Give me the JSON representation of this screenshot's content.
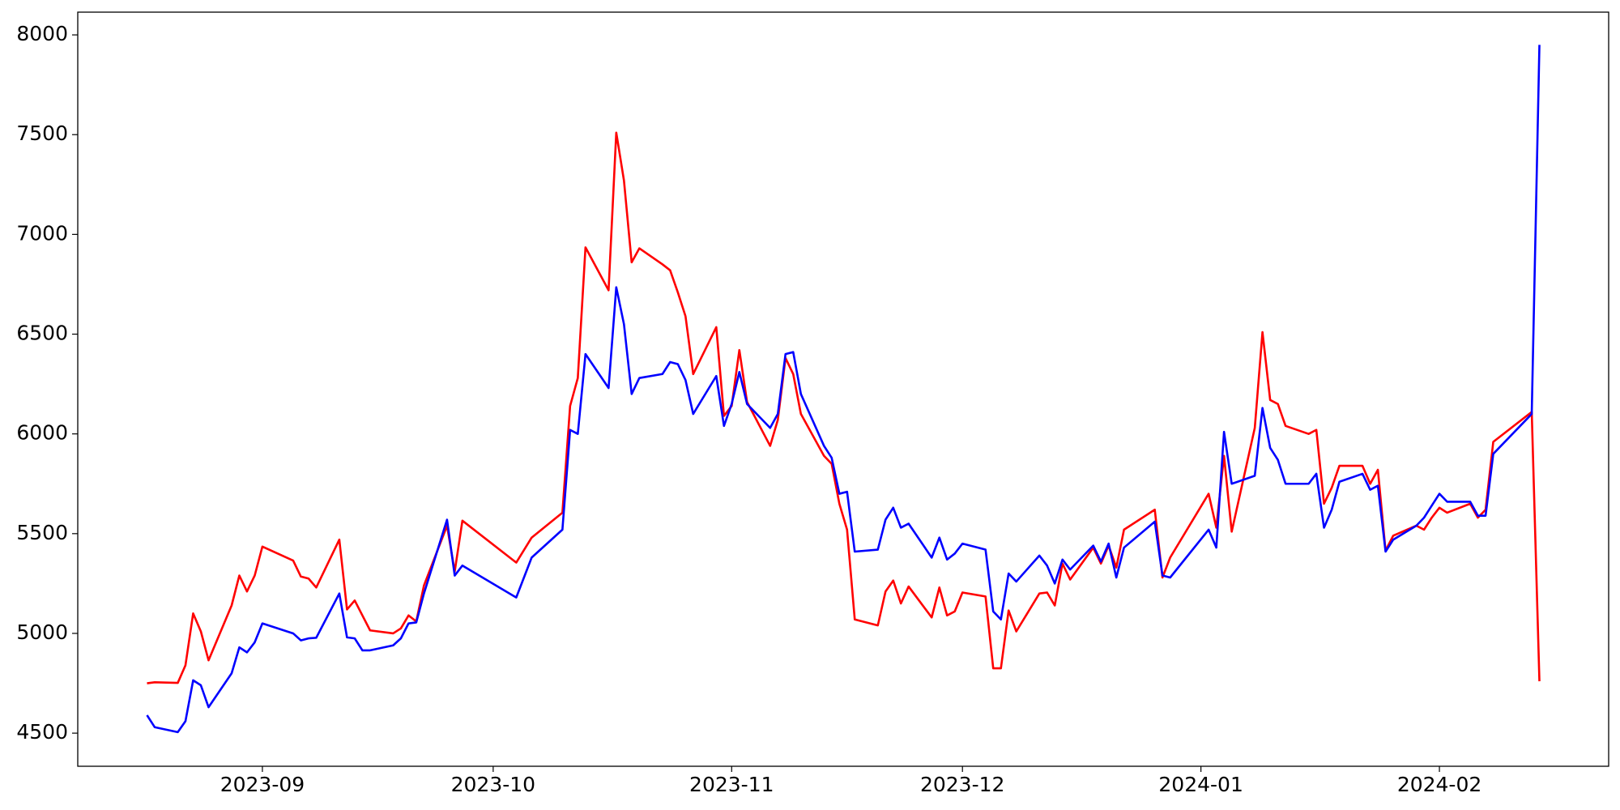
{
  "chart_data": {
    "type": "line",
    "x": [
      19586,
      19587,
      19590,
      19591,
      19592,
      19593,
      19594,
      19597,
      19598,
      19599,
      19600,
      19601,
      19605,
      19606,
      19607,
      19608,
      19611,
      19612,
      19613,
      19614,
      19615,
      19618,
      19619,
      19620,
      19621,
      19622,
      19625,
      19626,
      19627,
      19634,
      19636,
      19640,
      19641,
      19642,
      19643,
      19646,
      19647,
      19648,
      19649,
      19650,
      19653,
      19654,
      19655,
      19656,
      19657,
      19660,
      19661,
      19662,
      19663,
      19664,
      19667,
      19668,
      19669,
      19670,
      19671,
      19674,
      19675,
      19676,
      19677,
      19678,
      19681,
      19682,
      19683,
      19684,
      19685,
      19688,
      19689,
      19690,
      19691,
      19692,
      19695,
      19696,
      19697,
      19698,
      19699,
      19702,
      19703,
      19704,
      19705,
      19706,
      19709,
      19710,
      19711,
      19712,
      19713,
      19717,
      19718,
      19719,
      19724,
      19725,
      19726,
      19727,
      19730,
      19731,
      19732,
      19733,
      19734,
      19737,
      19738,
      19739,
      19740,
      19741,
      19744,
      19745,
      19746,
      19747,
      19748,
      19751,
      19752,
      19753,
      19754,
      19755,
      19758,
      19759,
      19760,
      19761,
      19766,
      19767
    ],
    "series": [
      {
        "color": "red",
        "values": [
          4750,
          4755,
          4752,
          4840,
          5100,
          5010,
          4865,
          5140,
          5290,
          5210,
          5290,
          5435,
          5365,
          5285,
          5275,
          5230,
          5470,
          5120,
          5165,
          5090,
          5015,
          5000,
          5025,
          5090,
          5060,
          5240,
          5540,
          5310,
          5565,
          5355,
          5480,
          5605,
          6140,
          6280,
          6935,
          6720,
          7510,
          7270,
          6860,
          6930,
          6850,
          6820,
          6710,
          6590,
          6300,
          6535,
          6090,
          6140,
          6420,
          6160,
          5940,
          6070,
          6380,
          6300,
          6100,
          5890,
          5850,
          5650,
          5520,
          5070,
          5040,
          5210,
          5265,
          5150,
          5235,
          5080,
          5230,
          5090,
          5110,
          5205,
          5185,
          4825,
          4825,
          5115,
          5010,
          5200,
          5205,
          5140,
          5350,
          5270,
          5430,
          5350,
          5440,
          5330,
          5520,
          5620,
          5280,
          5380,
          5700,
          5530,
          5890,
          5510,
          6030,
          6510,
          6170,
          6150,
          6040,
          6000,
          6020,
          5650,
          5730,
          5840,
          5840,
          5750,
          5820,
          5415,
          5490,
          5540,
          5520,
          5580,
          5630,
          5605,
          5650,
          5580,
          5620,
          5960,
          6110,
          4760
        ]
      },
      {
        "color": "blue",
        "values": [
          4590,
          4530,
          4505,
          4560,
          4765,
          4740,
          4630,
          4800,
          4930,
          4905,
          4955,
          5050,
          5000,
          4965,
          4975,
          4978,
          5200,
          4980,
          4975,
          4915,
          4915,
          4940,
          4975,
          5050,
          5055,
          5200,
          5570,
          5290,
          5340,
          5180,
          5380,
          5520,
          6020,
          6000,
          6400,
          6230,
          6735,
          6550,
          6200,
          6280,
          6300,
          6360,
          6350,
          6270,
          6100,
          6290,
          6040,
          6150,
          6310,
          6150,
          6030,
          6100,
          6400,
          6410,
          6200,
          5940,
          5880,
          5700,
          5710,
          5410,
          5420,
          5570,
          5630,
          5530,
          5550,
          5380,
          5480,
          5370,
          5400,
          5450,
          5420,
          5110,
          5070,
          5300,
          5260,
          5390,
          5340,
          5250,
          5370,
          5320,
          5440,
          5360,
          5450,
          5280,
          5430,
          5560,
          5290,
          5280,
          5520,
          5430,
          6010,
          5750,
          5790,
          6130,
          5930,
          5870,
          5750,
          5750,
          5800,
          5530,
          5620,
          5760,
          5800,
          5720,
          5740,
          5410,
          5470,
          5540,
          5580,
          5640,
          5700,
          5660,
          5660,
          5590,
          5590,
          5900,
          6100,
          7950
        ]
      }
    ],
    "xlim": [
      19577,
      19776
    ],
    "xticks": [
      {
        "value": 19601,
        "label": "2023-09"
      },
      {
        "value": 19631,
        "label": "2023-10"
      },
      {
        "value": 19662,
        "label": "2023-11"
      },
      {
        "value": 19692,
        "label": "2023-12"
      },
      {
        "value": 19723,
        "label": "2024-01"
      },
      {
        "value": 19754,
        "label": "2024-02"
      }
    ],
    "ylim": [
      4334,
      8114
    ],
    "yticks": [
      4500,
      5000,
      5500,
      6000,
      6500,
      7000,
      7500,
      8000
    ],
    "grid": false
  }
}
